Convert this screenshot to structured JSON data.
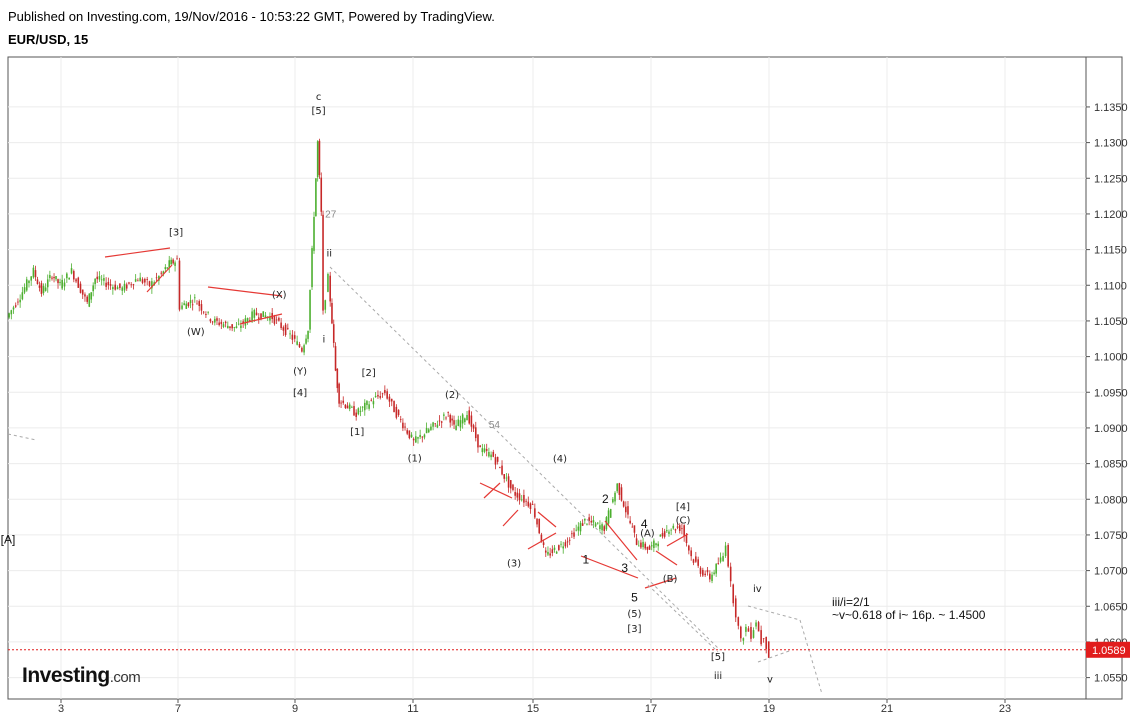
{
  "header": {
    "published": "Published on Investing.com, 19/Nov/2016 - 10:53:22 GMT, Powered by TradingView.",
    "symbol": "EUR/USD, 15"
  },
  "logo": {
    "text": "Investing",
    "suffix": ".com"
  },
  "chart_data": {
    "type": "candlestick",
    "title": "EUR/USD, 15",
    "ylim": [
      1.052,
      1.142
    ],
    "y_ticks": [
      "1.1350",
      "1.1300",
      "1.1250",
      "1.1200",
      "1.1150",
      "1.1100",
      "1.1050",
      "1.1000",
      "1.0950",
      "1.0900",
      "1.0850",
      "1.0800",
      "1.0750",
      "1.0700",
      "1.0650",
      "1.0600",
      "1.0550"
    ],
    "x_ticks": [
      "3",
      "7",
      "9",
      "11",
      "15",
      "17",
      "19",
      "21",
      "23"
    ],
    "last_price": "1.0589",
    "price_path": [
      [
        1.0,
        1.1055
      ],
      [
        1.5,
        1.1085
      ],
      [
        2.0,
        1.112
      ],
      [
        2.3,
        1.109
      ],
      [
        2.7,
        1.1115
      ],
      [
        3.0,
        1.11
      ],
      [
        3.3,
        1.112
      ],
      [
        3.7,
        1.1075
      ],
      [
        3.9,
        1.111
      ],
      [
        4.3,
        1.11
      ],
      [
        4.6,
        1.1095
      ],
      [
        5.0,
        1.111
      ],
      [
        5.3,
        1.11
      ],
      [
        5.6,
        1.1115
      ],
      [
        5.8,
        1.113
      ],
      [
        6.0,
        1.1135
      ],
      [
        6.05,
        1.107
      ],
      [
        6.3,
        1.108
      ],
      [
        6.6,
        1.105
      ],
      [
        7.0,
        1.104
      ],
      [
        7.3,
        1.106
      ],
      [
        7.6,
        1.1055
      ],
      [
        7.9,
        1.103
      ],
      [
        8.1,
        1.101
      ],
      [
        8.2,
        1.104
      ],
      [
        8.3,
        1.12
      ],
      [
        8.4,
        1.13
      ],
      [
        8.5,
        1.12
      ],
      [
        8.55,
        1.106
      ],
      [
        8.7,
        1.111
      ],
      [
        8.8,
        1.105
      ],
      [
        8.9,
        1.098
      ],
      [
        9.0,
        1.094
      ],
      [
        9.3,
        1.092
      ],
      [
        9.6,
        1.094
      ],
      [
        9.8,
        1.095
      ],
      [
        10.0,
        1.092
      ],
      [
        10.3,
        1.088
      ],
      [
        10.6,
        1.09
      ],
      [
        10.9,
        1.092
      ],
      [
        11.0,
        1.09
      ],
      [
        11.2,
        1.092
      ],
      [
        11.4,
        1.087
      ],
      [
        11.6,
        1.086
      ],
      [
        11.9,
        1.081
      ],
      [
        12.2,
        1.079
      ],
      [
        12.4,
        1.072
      ],
      [
        12.7,
        1.074
      ],
      [
        13.0,
        1.077
      ],
      [
        13.3,
        1.076
      ],
      [
        13.5,
        1.082
      ],
      [
        13.8,
        1.074
      ],
      [
        14.0,
        1.073
      ],
      [
        14.3,
        1.076
      ],
      [
        14.5,
        1.076
      ],
      [
        14.7,
        1.072
      ],
      [
        14.9,
        1.07
      ],
      [
        15.1,
        1.069
      ],
      [
        15.3,
        1.071
      ],
      [
        15.5,
        1.072
      ],
      [
        15.6,
        1.074
      ],
      [
        15.8,
        1.068
      ],
      [
        16.0,
        1.064
      ],
      [
        16.2,
        1.06
      ],
      [
        16.4,
        1.062
      ],
      [
        16.6,
        1.061
      ],
      [
        16.8,
        1.063
      ],
      [
        17.0,
        1.06
      ],
      [
        17.1,
        1.061
      ],
      [
        17.3,
        1.058
      ]
    ],
    "wave_labels": [
      {
        "text": "c",
        "x": 8.4,
        "y": 1.136
      },
      {
        "text": "[5]",
        "x": 8.4,
        "y": 1.134
      },
      {
        "text": "27",
        "x": 8.74,
        "y": 1.1195
      },
      {
        "text": "ii",
        "x": 8.7,
        "y": 1.114
      },
      {
        "text": "i",
        "x": 8.55,
        "y": 1.102
      },
      {
        "text": "(Y)",
        "x": 8.05,
        "y": 1.0975
      },
      {
        "text": "[4]",
        "x": 8.05,
        "y": 1.0945
      },
      {
        "text": "[3]",
        "x": 5.95,
        "y": 1.117
      },
      {
        "text": "(X)",
        "x": 7.7,
        "y": 1.1082
      },
      {
        "text": "(W)",
        "x": 6.3,
        "y": 1.103
      },
      {
        "text": "[2]",
        "x": 9.5,
        "y": 1.0973
      },
      {
        "text": "[1]",
        "x": 9.3,
        "y": 1.089
      },
      {
        "text": "(2)",
        "x": 10.95,
        "y": 1.0942
      },
      {
        "text": "54",
        "x": 11.6,
        "y": 1.09
      },
      {
        "text": "(1)",
        "x": 10.3,
        "y": 1.0853
      },
      {
        "text": "(4)",
        "x": 12.6,
        "y": 1.0852
      },
      {
        "text": "2",
        "x": 13.3,
        "y": 1.0795
      },
      {
        "text": "4",
        "x": 13.9,
        "y": 1.076
      },
      {
        "text": "(A)",
        "x": 13.95,
        "y": 1.0748
      },
      {
        "text": "[4]",
        "x": 14.5,
        "y": 1.0785
      },
      {
        "text": "(C)",
        "x": 14.5,
        "y": 1.0766
      },
      {
        "text": "(3)",
        "x": 11.9,
        "y": 1.0706
      },
      {
        "text": "1",
        "x": 13.0,
        "y": 1.071
      },
      {
        "text": "3",
        "x": 13.6,
        "y": 1.0698
      },
      {
        "text": "(B)",
        "x": 14.3,
        "y": 1.0684
      },
      {
        "text": "5",
        "x": 13.75,
        "y": 1.0657
      },
      {
        "text": "(5)",
        "x": 13.75,
        "y": 1.0635
      },
      {
        "text": "[3]",
        "x": 13.75,
        "y": 1.0614
      },
      {
        "text": "[5]",
        "x": 15.25,
        "y": 1.0575
      },
      {
        "text": "iii",
        "x": 15.25,
        "y": 1.0548
      },
      {
        "text": "iv",
        "x": 16.8,
        "y": 1.067
      },
      {
        "text": "v",
        "x": 17.3,
        "y": 1.0543
      },
      {
        "text": "[A]",
        "x": 0.7,
        "y": 1.0738
      }
    ],
    "notes": [
      "iii/i=2/1",
      "~v~0.618 of i~ 16p. ~ 1.4500"
    ]
  },
  "colors": {
    "up": "#4caf2f",
    "down": "#c62828",
    "trend": "#e53935",
    "dashed": "#aaaaaa",
    "price": "#e11d1d"
  }
}
